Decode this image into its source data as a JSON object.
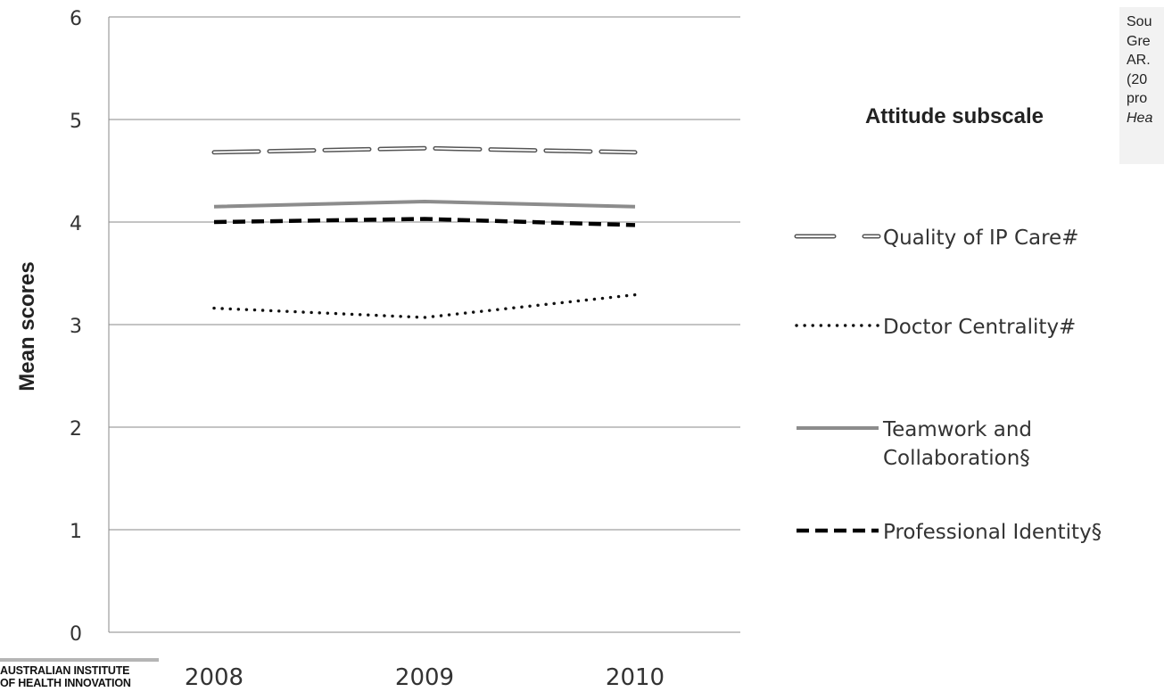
{
  "chart_data": {
    "type": "line",
    "categories": [
      "2008",
      "2009",
      "2010"
    ],
    "ylabel": "Mean scores",
    "ylim": [
      0,
      6
    ],
    "yticks": [
      "0",
      "1",
      "2",
      "3",
      "4",
      "5",
      "6"
    ],
    "grid": true,
    "legend_title": "Attitude subscale",
    "legend_position": "right",
    "series": [
      {
        "name": "Quality of IP Care#",
        "values": [
          4.68,
          4.72,
          4.68
        ],
        "style": "double-dash",
        "color": "#555555"
      },
      {
        "name": "Doctor Centrality#",
        "values": [
          3.16,
          3.07,
          3.29
        ],
        "style": "dotted",
        "color": "#111111"
      },
      {
        "name": "Teamwork and Collaboration§",
        "name_lines": [
          "Teamwork and",
          "Collaboration§"
        ],
        "values": [
          4.15,
          4.2,
          4.15
        ],
        "style": "solid",
        "color": "#8c8c8c"
      },
      {
        "name": "Professional Identity§",
        "values": [
          4.0,
          4.03,
          3.97
        ],
        "style": "dashed",
        "color": "#000000"
      }
    ]
  },
  "source_note": {
    "lines": [
      "Sou",
      "Gre",
      "AR.",
      "(20",
      "pro"
    ],
    "italic_line": "Hea"
  },
  "logo": {
    "line1": "AUSTRALIAN INSTITUTE",
    "line2": "OF HEALTH INNOVATION"
  }
}
